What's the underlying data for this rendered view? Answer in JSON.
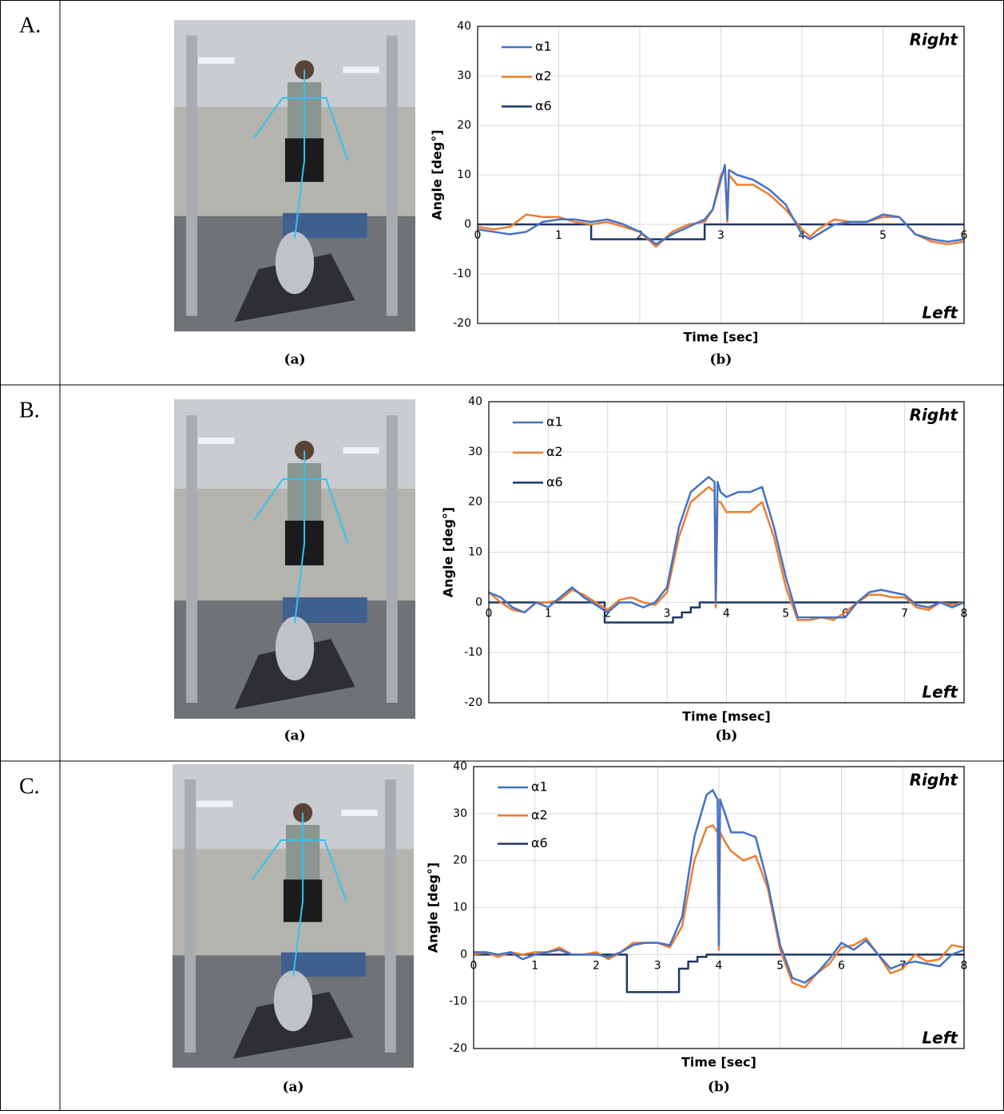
{
  "panels": [
    {
      "label": "A.",
      "captions": [
        "(a)",
        "(b)"
      ]
    },
    {
      "label": "B.",
      "captions": [
        "(a)",
        "(b)"
      ]
    },
    {
      "label": "C.",
      "captions": [
        "(a)",
        "(b)"
      ]
    }
  ],
  "chart_data": [
    {
      "type": "line",
      "x_label": "Time [sec]",
      "y_label": "Angle [deg°]",
      "annotations": [
        "Right",
        "Left"
      ],
      "legend": "upper left",
      "grid": true,
      "xlim": [
        0,
        6
      ],
      "xticks": [
        0,
        1,
        2,
        3,
        4,
        5,
        6
      ],
      "ylim": [
        -20,
        40
      ],
      "yticks": [
        -20,
        -10,
        0,
        10,
        20,
        30,
        40
      ],
      "series": [
        {
          "name": "α1",
          "color": "#4472c4",
          "x": [
            0,
            0.2,
            0.4,
            0.6,
            0.8,
            1.0,
            1.2,
            1.4,
            1.6,
            1.8,
            2.0,
            2.2,
            2.4,
            2.6,
            2.8,
            2.9,
            3.0,
            3.05,
            3.08,
            3.1,
            3.2,
            3.4,
            3.6,
            3.8,
            4.0,
            4.1,
            4.2,
            4.4,
            4.6,
            4.8,
            5.0,
            5.2,
            5.4,
            5.6,
            5.8,
            6.0
          ],
          "values": [
            -1,
            -1.5,
            -2,
            -1.5,
            0.5,
            1,
            1,
            0.5,
            1,
            0,
            -1.5,
            -4,
            -2,
            -0.5,
            1,
            3,
            9,
            12,
            1,
            11,
            10,
            9,
            7,
            4,
            -2,
            -3,
            -2,
            0,
            0.5,
            0.5,
            2,
            1.5,
            -2,
            -3,
            -3.5,
            -3
          ]
        },
        {
          "name": "α2",
          "color": "#ed7d31",
          "x": [
            0,
            0.2,
            0.4,
            0.6,
            0.8,
            1.0,
            1.2,
            1.4,
            1.6,
            1.8,
            2.0,
            2.2,
            2.4,
            2.6,
            2.8,
            2.9,
            3.0,
            3.05,
            3.08,
            3.1,
            3.2,
            3.4,
            3.6,
            3.8,
            4.0,
            4.1,
            4.2,
            4.4,
            4.6,
            4.8,
            5.0,
            5.2,
            5.4,
            5.6,
            5.8,
            6.0
          ],
          "values": [
            -0.5,
            -1,
            -0.5,
            2,
            1.5,
            1.5,
            0.5,
            0,
            0.5,
            -0.5,
            -1.5,
            -4.5,
            -1.5,
            0,
            0.5,
            3,
            10,
            11,
            0.5,
            10,
            8,
            8,
            6,
            3,
            -1,
            -2.5,
            -1,
            1,
            0.5,
            0.5,
            1.5,
            1.5,
            -2,
            -3.5,
            -4,
            -3.5
          ]
        },
        {
          "name": "α6",
          "color": "#1f3864",
          "x": [
            0,
            1.4,
            1.4,
            2.8,
            2.8,
            6
          ],
          "values": [
            0,
            0,
            -3,
            -3,
            0,
            0
          ]
        }
      ]
    },
    {
      "type": "line",
      "x_label": "Time [msec]",
      "y_label": "Angle [deg°]",
      "annotations": [
        "Right",
        "Left"
      ],
      "legend": "upper left",
      "grid": true,
      "xlim": [
        0,
        8
      ],
      "xticks": [
        0,
        1,
        2,
        3,
        4,
        5,
        6,
        7,
        8
      ],
      "ylim": [
        -20,
        40
      ],
      "yticks": [
        -20,
        -10,
        0,
        10,
        20,
        30,
        40
      ],
      "series": [
        {
          "name": "α1",
          "color": "#4472c4",
          "x": [
            0,
            0.2,
            0.4,
            0.6,
            0.8,
            1.0,
            1.2,
            1.4,
            1.6,
            1.8,
            2.0,
            2.2,
            2.4,
            2.6,
            2.8,
            3.0,
            3.2,
            3.4,
            3.6,
            3.7,
            3.8,
            3.82,
            3.85,
            3.9,
            4.0,
            4.2,
            4.4,
            4.6,
            4.8,
            5.0,
            5.2,
            5.4,
            5.6,
            5.8,
            6.0,
            6.2,
            6.4,
            6.6,
            6.8,
            7.0,
            7.2,
            7.4,
            7.6,
            7.8,
            8.0
          ],
          "values": [
            2,
            1,
            -1,
            -2,
            0,
            -1,
            1,
            3,
            1,
            -0.5,
            -2,
            0,
            0,
            -1,
            0,
            3,
            15,
            22,
            24,
            25,
            24,
            0,
            24,
            22,
            21,
            22,
            22,
            23,
            15,
            5,
            -3,
            -3,
            -3,
            -3,
            -3,
            0,
            2,
            2.5,
            2,
            1.5,
            -0.5,
            -1,
            0,
            -1,
            0
          ]
        },
        {
          "name": "α2",
          "color": "#ed7d31",
          "x": [
            0,
            0.2,
            0.4,
            0.6,
            0.8,
            1.0,
            1.2,
            1.4,
            1.6,
            1.8,
            2.0,
            2.2,
            2.4,
            2.6,
            2.8,
            3.0,
            3.2,
            3.4,
            3.6,
            3.7,
            3.8,
            3.82,
            3.85,
            3.9,
            4.0,
            4.2,
            4.4,
            4.6,
            4.8,
            5.0,
            5.2,
            5.4,
            5.6,
            5.8,
            6.0,
            6.2,
            6.4,
            6.6,
            6.8,
            7.0,
            7.2,
            7.4,
            7.6,
            7.8,
            8.0
          ],
          "values": [
            2,
            0,
            -1.5,
            -2,
            0,
            0,
            0.5,
            2.5,
            1.5,
            0,
            -1.5,
            0.5,
            1,
            0,
            -0.5,
            2,
            13,
            20,
            22,
            23,
            22,
            -1,
            20,
            20,
            18,
            18,
            18,
            20,
            13,
            3,
            -3.5,
            -3.5,
            -3,
            -3.5,
            -2,
            0,
            1.5,
            1.5,
            1,
            1,
            -1,
            -1.5,
            0,
            -0.5,
            0
          ]
        },
        {
          "name": "α6",
          "color": "#1f3864",
          "x": [
            0,
            1.95,
            1.95,
            3.1,
            3.1,
            3.25,
            3.25,
            3.4,
            3.4,
            3.55,
            3.55,
            8
          ],
          "values": [
            0,
            0,
            -4,
            -4,
            -3,
            -3,
            -2,
            -2,
            -1,
            -1,
            0,
            0
          ]
        }
      ]
    },
    {
      "type": "line",
      "x_label": "Time [sec]",
      "y_label": "Angle [deg°]",
      "annotations": [
        "Right",
        "Left"
      ],
      "legend": "upper left",
      "grid": true,
      "xlim": [
        0,
        8
      ],
      "xticks": [
        0,
        1,
        2,
        3,
        4,
        5,
        6,
        7,
        8
      ],
      "ylim": [
        -20,
        40
      ],
      "yticks": [
        -20,
        -10,
        0,
        10,
        20,
        30,
        40
      ],
      "series": [
        {
          "name": "α1",
          "color": "#4472c4",
          "x": [
            0,
            0.2,
            0.4,
            0.6,
            0.8,
            1.0,
            1.2,
            1.4,
            1.6,
            1.8,
            2.0,
            2.2,
            2.4,
            2.6,
            2.8,
            3.0,
            3.2,
            3.4,
            3.6,
            3.8,
            3.9,
            3.98,
            4.0,
            4.02,
            4.1,
            4.2,
            4.4,
            4.6,
            4.8,
            5.0,
            5.2,
            5.4,
            5.6,
            5.8,
            6.0,
            6.2,
            6.4,
            6.6,
            6.8,
            7.0,
            7.2,
            7.4,
            7.6,
            7.8,
            8.0
          ],
          "values": [
            0.5,
            0.5,
            0,
            0.5,
            -1,
            0,
            0.5,
            1,
            0,
            0,
            0,
            -0.5,
            0.5,
            2,
            2.5,
            2.5,
            2,
            8,
            25,
            34,
            35,
            33,
            2,
            33,
            30,
            26,
            26,
            25,
            15,
            2,
            -5,
            -6,
            -4,
            -1,
            2.5,
            1,
            3,
            0,
            -3,
            -2,
            -1.5,
            -2,
            -2.5,
            0,
            1
          ]
        },
        {
          "name": "α2",
          "color": "#ed7d31",
          "x": [
            0,
            0.2,
            0.4,
            0.6,
            0.8,
            1.0,
            1.2,
            1.4,
            1.6,
            1.8,
            2.0,
            2.2,
            2.4,
            2.6,
            2.8,
            3.0,
            3.2,
            3.4,
            3.6,
            3.8,
            3.9,
            3.98,
            4.0,
            4.02,
            4.1,
            4.2,
            4.4,
            4.6,
            4.8,
            5.0,
            5.2,
            5.4,
            5.6,
            5.8,
            6.0,
            6.2,
            6.4,
            6.6,
            6.8,
            7.0,
            7.2,
            7.4,
            7.6,
            7.8,
            8.0
          ],
          "values": [
            0,
            0.5,
            -0.5,
            0.5,
            0,
            0.5,
            0.5,
            1.5,
            0,
            0,
            0.5,
            -1,
            0.5,
            2.5,
            2.5,
            2.5,
            1.5,
            6,
            20,
            27,
            27.5,
            26,
            1,
            26,
            24,
            22,
            20,
            21,
            14,
            1,
            -6,
            -7,
            -4,
            -2,
            1.5,
            2,
            3.5,
            0,
            -4,
            -3,
            0,
            -1.5,
            -1,
            2,
            1.5
          ]
        },
        {
          "name": "α6",
          "color": "#1f3864",
          "x": [
            0,
            2.5,
            2.5,
            3.35,
            3.35,
            3.5,
            3.5,
            3.65,
            3.65,
            3.8,
            3.8,
            8
          ],
          "values": [
            0,
            0,
            -8,
            -8,
            -3,
            -3,
            -1.5,
            -1.5,
            -0.5,
            -0.5,
            0,
            0
          ]
        }
      ]
    }
  ]
}
